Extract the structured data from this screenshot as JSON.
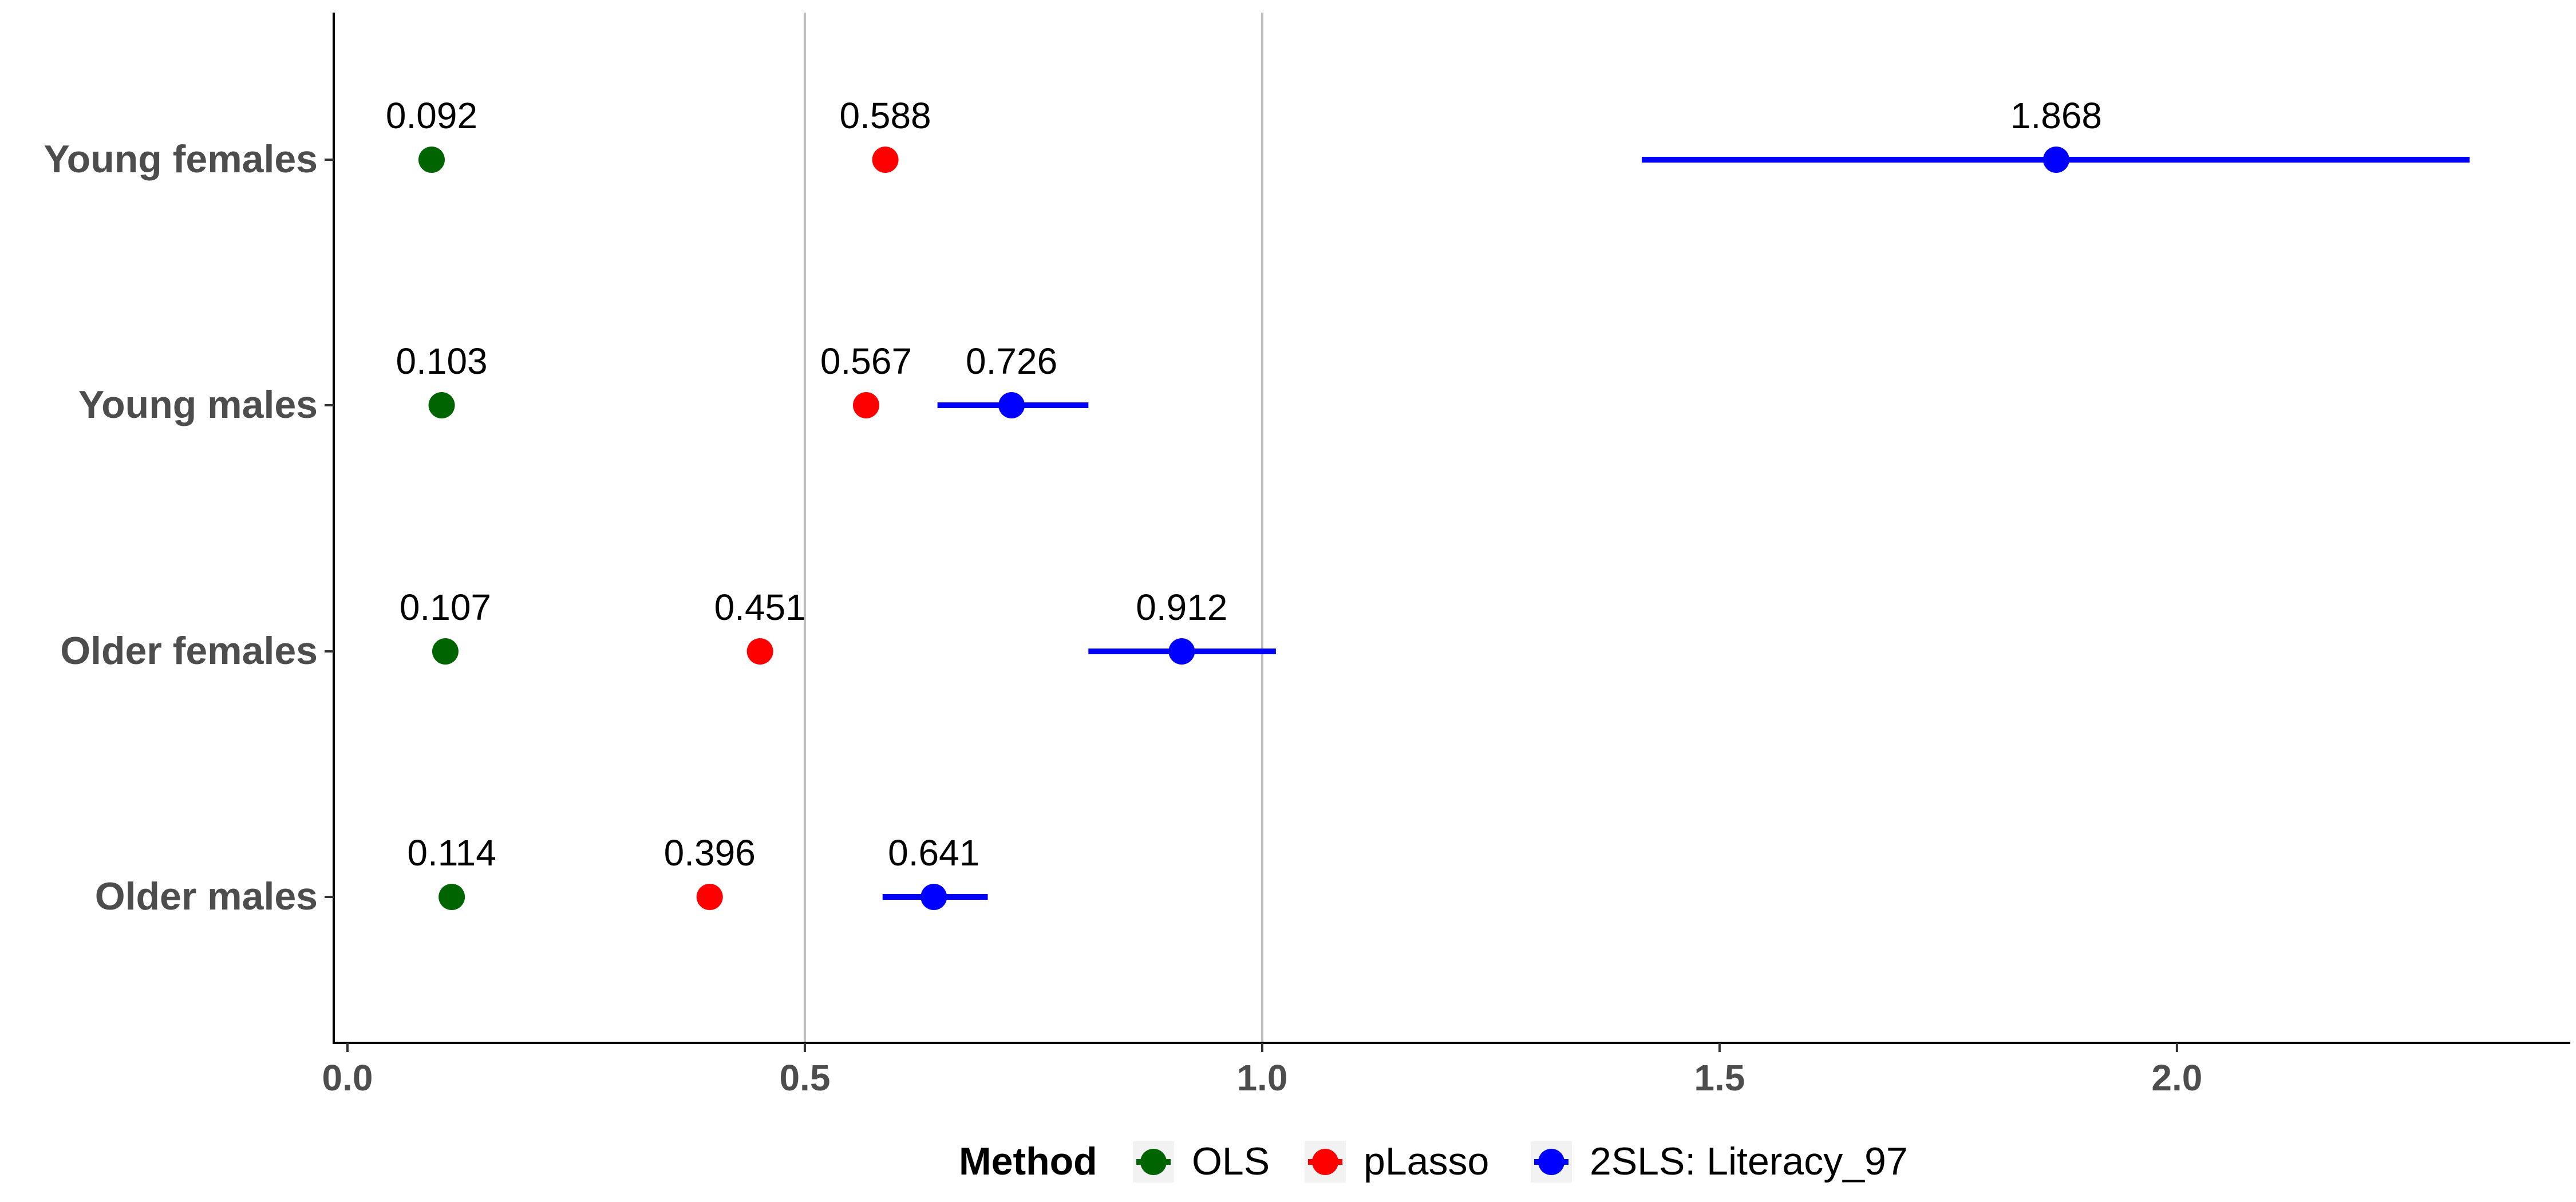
{
  "chart_data": {
    "type": "scatter",
    "categories": [
      "Young females",
      "Young males",
      "Older females",
      "Older males"
    ],
    "xlim": [
      -0.015,
      2.43
    ],
    "x_ticks": [
      0.0,
      0.5,
      1.0,
      1.5,
      2.0
    ],
    "x_tick_labels": [
      "0.0",
      "0.5",
      "1.0",
      "1.5",
      "2.0"
    ],
    "reference_lines": [
      0.5,
      1.0
    ],
    "grid": false,
    "legend": {
      "title": "Method",
      "placement": "bottom"
    },
    "series": [
      {
        "name": "OLS",
        "color": "#006400",
        "values": [
          0.092,
          0.103,
          0.107,
          0.114
        ],
        "labels": [
          "0.092",
          "0.103",
          "0.107",
          "0.114"
        ]
      },
      {
        "name": "pLasso",
        "color": "#ff0000",
        "values": [
          0.588,
          0.567,
          0.451,
          0.396
        ],
        "labels": [
          "0.588",
          "0.567",
          "0.451",
          "0.396"
        ]
      },
      {
        "name": "2SLS: Literacy_97",
        "color": "#0000ff",
        "values": [
          1.868,
          0.726,
          0.912,
          0.641
        ],
        "labels": [
          "1.868",
          "0.726",
          "0.912",
          "0.641"
        ],
        "lower": [
          1.415,
          0.645,
          0.81,
          0.585
        ],
        "upper": [
          2.32,
          0.81,
          1.015,
          0.7
        ]
      }
    ]
  }
}
